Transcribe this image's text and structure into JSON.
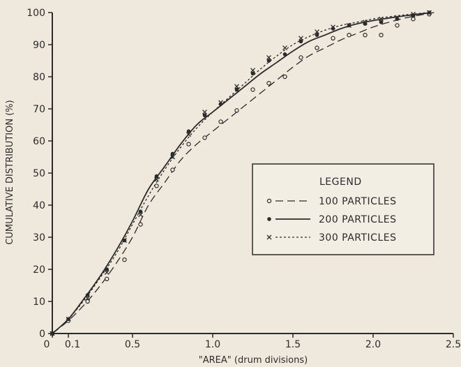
{
  "chart_data": {
    "type": "line",
    "xlabel": "\"AREA\" (drum divisions)",
    "ylabel": "CUMULATIVE DISTRIBUTION (%)",
    "xlim": [
      0,
      2.5
    ],
    "ylim": [
      0,
      100
    ],
    "x_ticks": [
      {
        "value": 0,
        "label": "0"
      },
      {
        "value": 0.1,
        "label": "0.1"
      },
      {
        "value": 0.5,
        "label": "0.5"
      },
      {
        "value": 1.0,
        "label": "1.0"
      },
      {
        "value": 1.5,
        "label": "1.5"
      },
      {
        "value": 2.0,
        "label": "2.0"
      },
      {
        "value": 2.5,
        "label": "2.5"
      }
    ],
    "y_ticks": [
      0,
      10,
      20,
      30,
      40,
      50,
      60,
      70,
      80,
      90,
      100
    ],
    "grid": false,
    "legend": {
      "title": "LEGEND",
      "position": "center-right"
    },
    "series": [
      {
        "name": "100 PARTICLES",
        "marker": "open-circle",
        "line_style": "long-dash",
        "points": [
          [
            0.0,
            0
          ],
          [
            0.1,
            4
          ],
          [
            0.22,
            10
          ],
          [
            0.34,
            17
          ],
          [
            0.45,
            23
          ],
          [
            0.55,
            34
          ],
          [
            0.65,
            46
          ],
          [
            0.75,
            51
          ],
          [
            0.85,
            59
          ],
          [
            0.95,
            61
          ],
          [
            1.05,
            66
          ],
          [
            1.15,
            69.5
          ],
          [
            1.25,
            76
          ],
          [
            1.35,
            78
          ],
          [
            1.45,
            80
          ],
          [
            1.55,
            86
          ],
          [
            1.65,
            89
          ],
          [
            1.75,
            92
          ],
          [
            1.85,
            93
          ],
          [
            1.95,
            93
          ],
          [
            2.05,
            93
          ],
          [
            2.15,
            96
          ],
          [
            2.25,
            98
          ],
          [
            2.35,
            99.5
          ]
        ],
        "fit": [
          [
            0.0,
            0
          ],
          [
            0.1,
            4
          ],
          [
            0.2,
            9
          ],
          [
            0.3,
            15
          ],
          [
            0.4,
            22
          ],
          [
            0.5,
            30
          ],
          [
            0.6,
            40
          ],
          [
            0.7,
            47
          ],
          [
            0.8,
            54
          ],
          [
            0.9,
            59
          ],
          [
            1.0,
            63
          ],
          [
            1.1,
            67
          ],
          [
            1.2,
            71
          ],
          [
            1.3,
            75
          ],
          [
            1.4,
            79
          ],
          [
            1.5,
            83
          ],
          [
            1.6,
            86.5
          ],
          [
            1.7,
            89
          ],
          [
            1.8,
            91.5
          ],
          [
            1.9,
            93.5
          ],
          [
            2.0,
            95.5
          ],
          [
            2.1,
            97
          ],
          [
            2.2,
            98.3
          ],
          [
            2.3,
            99.3
          ],
          [
            2.38,
            100
          ]
        ]
      },
      {
        "name": "200 PARTICLES",
        "marker": "filled-circle",
        "line_style": "solid",
        "points": [
          [
            0.0,
            0
          ],
          [
            0.1,
            4.5
          ],
          [
            0.22,
            12
          ],
          [
            0.34,
            20
          ],
          [
            0.45,
            29
          ],
          [
            0.55,
            38
          ],
          [
            0.65,
            49
          ],
          [
            0.75,
            56
          ],
          [
            0.85,
            63
          ],
          [
            0.95,
            68
          ],
          [
            1.05,
            71.5
          ],
          [
            1.15,
            76
          ],
          [
            1.25,
            81
          ],
          [
            1.35,
            85
          ],
          [
            1.45,
            87
          ],
          [
            1.55,
            91
          ],
          [
            1.65,
            93
          ],
          [
            1.75,
            95
          ],
          [
            1.85,
            96
          ],
          [
            1.95,
            96.5
          ],
          [
            2.05,
            97
          ],
          [
            2.15,
            98
          ],
          [
            2.25,
            99
          ],
          [
            2.35,
            100
          ]
        ],
        "fit": [
          [
            0.0,
            0
          ],
          [
            0.1,
            4.5
          ],
          [
            0.2,
            11
          ],
          [
            0.3,
            18
          ],
          [
            0.4,
            26
          ],
          [
            0.5,
            35
          ],
          [
            0.6,
            45
          ],
          [
            0.7,
            52
          ],
          [
            0.8,
            59
          ],
          [
            0.9,
            65
          ],
          [
            1.0,
            69
          ],
          [
            1.1,
            73
          ],
          [
            1.2,
            77
          ],
          [
            1.3,
            81
          ],
          [
            1.4,
            84.5
          ],
          [
            1.5,
            88
          ],
          [
            1.6,
            91
          ],
          [
            1.7,
            93
          ],
          [
            1.8,
            95
          ],
          [
            1.9,
            96.5
          ],
          [
            2.0,
            97.5
          ],
          [
            2.1,
            98.3
          ],
          [
            2.2,
            99
          ],
          [
            2.3,
            99.6
          ],
          [
            2.36,
            100
          ]
        ]
      },
      {
        "name": "300 PARTICLES",
        "marker": "cross",
        "line_style": "short-dash",
        "points": [
          [
            0.0,
            0
          ],
          [
            0.1,
            4.5
          ],
          [
            0.22,
            11
          ],
          [
            0.34,
            19
          ],
          [
            0.45,
            29
          ],
          [
            0.55,
            37
          ],
          [
            0.65,
            48
          ],
          [
            0.75,
            55
          ],
          [
            0.85,
            62
          ],
          [
            0.95,
            69
          ],
          [
            1.05,
            72
          ],
          [
            1.15,
            77
          ],
          [
            1.25,
            82
          ],
          [
            1.35,
            86
          ],
          [
            1.45,
            89
          ],
          [
            1.55,
            92
          ],
          [
            1.65,
            94
          ],
          [
            1.75,
            95.5
          ],
          [
            1.85,
            96
          ],
          [
            1.95,
            97
          ],
          [
            2.05,
            98
          ],
          [
            2.15,
            98.5
          ],
          [
            2.25,
            99.5
          ],
          [
            2.35,
            100
          ]
        ],
        "fit": [
          [
            0.0,
            0
          ],
          [
            0.1,
            4.5
          ],
          [
            0.2,
            10.5
          ],
          [
            0.3,
            17.5
          ],
          [
            0.4,
            25
          ],
          [
            0.5,
            34
          ],
          [
            0.6,
            43
          ],
          [
            0.7,
            51
          ],
          [
            0.8,
            58
          ],
          [
            0.9,
            64
          ],
          [
            1.0,
            69
          ],
          [
            1.1,
            73.5
          ],
          [
            1.2,
            78
          ],
          [
            1.3,
            82.5
          ],
          [
            1.4,
            86.5
          ],
          [
            1.5,
            90
          ],
          [
            1.6,
            92.5
          ],
          [
            1.7,
            94.5
          ],
          [
            1.8,
            96
          ],
          [
            1.9,
            97
          ],
          [
            2.0,
            98
          ],
          [
            2.1,
            98.7
          ],
          [
            2.2,
            99.3
          ],
          [
            2.3,
            99.8
          ],
          [
            2.35,
            100
          ]
        ]
      }
    ]
  }
}
